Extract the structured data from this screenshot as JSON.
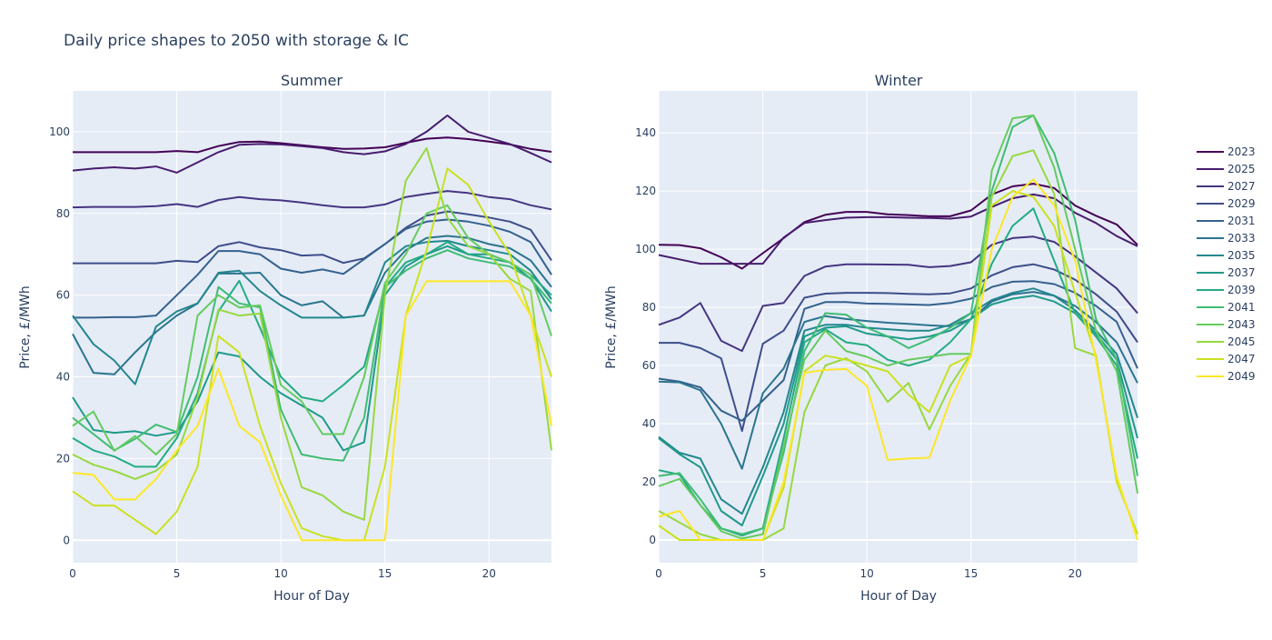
{
  "chart_data": {
    "type": "line",
    "title": "Daily price shapes to 2050 with storage & IC",
    "legend_position": "right",
    "x": [
      0,
      1,
      2,
      3,
      4,
      5,
      6,
      7,
      8,
      9,
      10,
      11,
      12,
      13,
      14,
      15,
      16,
      17,
      18,
      19,
      20,
      21,
      22,
      23
    ],
    "legend": [
      "2023",
      "2025",
      "2027",
      "2029",
      "2031",
      "2033",
      "2035",
      "2037",
      "2039",
      "2041",
      "2043",
      "2045",
      "2047",
      "2049"
    ],
    "colors": [
      "#440154",
      "#481a6c",
      "#472f7d",
      "#414487",
      "#39568c",
      "#31688e",
      "#2a788e",
      "#23888e",
      "#1f988b",
      "#22a884",
      "#35b779",
      "#54c568",
      "#7ad151",
      "#a5db36",
      "#d2e21b",
      "#fde725"
    ],
    "series_colors": [
      "#440154",
      "#481c6e",
      "#453581",
      "#3d4d8a",
      "#34618d",
      "#2b748e",
      "#24878e",
      "#1f998a",
      "#25ab82",
      "#3fbc73",
      "#65cb5e",
      "#97d83f",
      "#cae11f",
      "#fde725"
    ],
    "subplots": [
      {
        "title": "Summer",
        "xlabel": "Hour of Day",
        "ylabel": "Price, £/MWh",
        "xlim": [
          0,
          23
        ],
        "ylim": [
          -5.5,
          110
        ],
        "xticks": [
          0,
          5,
          10,
          15,
          20
        ],
        "yticks": [
          0,
          20,
          40,
          60,
          80,
          100
        ],
        "grid": true,
        "series": [
          {
            "name": "2023",
            "values": [
              95,
              95,
              95,
              95,
              95,
              95.3,
              95,
              96.5,
              97.5,
              97.6,
              97.2,
              96.7,
              96.2,
              95.8,
              95.9,
              96.2,
              97.3,
              98.3,
              98.6,
              98.2,
              97.6,
              96.9,
              95.8,
              95.1
            ]
          },
          {
            "name": "2025",
            "values": [
              90.5,
              91,
              91.3,
              91,
              91.5,
              90,
              92.5,
              95,
              96.8,
              97,
              96.9,
              96.5,
              96,
              95,
              94.5,
              95.2,
              97,
              100,
              104,
              100,
              98.5,
              97,
              94.8,
              92.5
            ]
          },
          {
            "name": "2027",
            "values": [
              81.5,
              81.6,
              81.6,
              81.6,
              81.8,
              82.3,
              81.6,
              83.3,
              84,
              83.5,
              83.2,
              82.7,
              82,
              81.5,
              81.5,
              82.2,
              84,
              84.8,
              85.5,
              85,
              84,
              83.5,
              82,
              81
            ]
          },
          {
            "name": "2029",
            "values": [
              67.8,
              67.8,
              67.8,
              67.8,
              67.8,
              68.4,
              68.1,
              72,
              73,
              71.7,
              71,
              69.7,
              69.9,
              67.9,
              69,
              72.5,
              76.5,
              79.5,
              80.5,
              79.8,
              79,
              78,
              76,
              68.5
            ]
          },
          {
            "name": "2031",
            "values": [
              54.5,
              54.5,
              54.6,
              54.6,
              55,
              60,
              65,
              70.8,
              70.8,
              70,
              66.5,
              65.5,
              66.3,
              65.2,
              68.8,
              72.5,
              76.2,
              78,
              78.5,
              78,
              77,
              75.5,
              73,
              65
            ]
          },
          {
            "name": "2033",
            "values": [
              50.5,
              41,
              40.6,
              46,
              51,
              55,
              58,
              65.3,
              65.3,
              65.5,
              60,
              57.5,
              58.5,
              54.5,
              55,
              65.5,
              71,
              74,
              74.5,
              74,
              72.5,
              71.5,
              68.5,
              62
            ]
          },
          {
            "name": "2035",
            "values": [
              55,
              48,
              44,
              38.2,
              52.3,
              56,
              58,
              65.5,
              66,
              61,
              57.5,
              54.5,
              54.5,
              54.5,
              55,
              68,
              72,
              73,
              73.3,
              72,
              71,
              70,
              66,
              59
            ]
          },
          {
            "name": "2037",
            "values": [
              35,
              27,
              26.3,
              26.7,
              25.6,
              26.5,
              34,
              46,
              45,
              40,
              36,
              33,
              30,
              22,
              24,
              60,
              67,
              70,
              72,
              70,
              70,
              68,
              64,
              56
            ]
          },
          {
            "name": "2039",
            "values": [
              25,
              22,
              20.5,
              18,
              18,
              25,
              36,
              56,
              63.5,
              52,
              40,
              35,
              34,
              38,
              42.5,
              62,
              68,
              70,
              73,
              70,
              69,
              68,
              65,
              60
            ]
          },
          {
            "name": "2041",
            "values": [
              30,
              26,
              22,
              24.8,
              28.3,
              26.5,
              40,
              62,
              58,
              57,
              32,
              21,
              20,
              19.5,
              30,
              62,
              66,
              69,
              71,
              69,
              68,
              67,
              64,
              58
            ]
          },
          {
            "name": "2043",
            "values": [
              28,
              31.5,
              21.9,
              25.5,
              21,
              26,
              55,
              60,
              57,
              57.5,
              38,
              34,
              26,
              26,
              40,
              63,
              70,
              80,
              82,
              74,
              70,
              68,
              65,
              50
            ]
          },
          {
            "name": "2045",
            "values": [
              21,
              18.5,
              17,
              15,
              17,
              21,
              35,
              56.5,
              55,
              55.5,
              30,
              13,
              11,
              7,
              5,
              60,
              88,
              96,
              79,
              72,
              70,
              64,
              61,
              22
            ]
          },
          {
            "name": "2047",
            "values": [
              12,
              8.5,
              8.5,
              5,
              1.5,
              7,
              18,
              50,
              46,
              28,
              14,
              3,
              1,
              0,
              0,
              18,
              55,
              71,
              91,
              87,
              78,
              70,
              55,
              40
            ]
          },
          {
            "name": "2049",
            "values": [
              16.5,
              16,
              10,
              10,
              15,
              22,
              28,
              42,
              28,
              24,
              11,
              0,
              0,
              0,
              0,
              0,
              55,
              63.4,
              63.4,
              63.4,
              63.4,
              63.4,
              55,
              28
            ]
          }
        ]
      },
      {
        "title": "Winter",
        "xlabel": "Hour of Day",
        "ylabel": "Price, £/MWh",
        "xlim": [
          0,
          23
        ],
        "ylim": [
          -7.8,
          154.4
        ],
        "xticks": [
          0,
          5,
          10,
          15,
          20
        ],
        "yticks": [
          0,
          20,
          40,
          60,
          80,
          100,
          120,
          140
        ],
        "grid": true,
        "series": [
          {
            "name": "2023",
            "values": [
              101.5,
              101.4,
              100.3,
              97.2,
              93.3,
              98.6,
              103.8,
              109.3,
              111.8,
              112.8,
              112.8,
              112,
              111.7,
              111.3,
              111.3,
              113.3,
              118.8,
              121.6,
              122.5,
              121,
              115,
              111.5,
              108.5,
              101.5
            ]
          },
          {
            "name": "2025",
            "values": [
              98,
              96.5,
              95,
              95,
              95,
              95,
              104,
              109,
              110,
              110.8,
              111,
              111,
              110.8,
              110.7,
              110.5,
              111.2,
              114.5,
              117.5,
              118.8,
              117.5,
              112.5,
              109,
              104.5,
              101
            ]
          },
          {
            "name": "2027",
            "values": [
              74,
              76.5,
              81.5,
              68.5,
              65,
              80.5,
              81.5,
              90.8,
              94,
              94.8,
              94.8,
              94.7,
              94.6,
              93.8,
              94.2,
              95.5,
              101.5,
              103.8,
              104.3,
              102.5,
              97.5,
              92,
              86.5,
              78
            ]
          },
          {
            "name": "2029",
            "values": [
              67.8,
              67.8,
              66,
              62.5,
              37.5,
              67.5,
              72,
              83.3,
              84.7,
              85,
              85,
              84.9,
              84.6,
              84.5,
              84.8,
              86.5,
              91,
              93.8,
              94.8,
              93,
              89.5,
              84.5,
              78.5,
              68
            ]
          },
          {
            "name": "2031",
            "values": [
              55.5,
              54.5,
              52.5,
              44.5,
              41,
              48,
              55,
              79.5,
              81.8,
              81.8,
              81.3,
              81.2,
              81,
              80.8,
              81.5,
              83,
              87,
              88.8,
              89,
              88,
              85,
              80.5,
              75,
              59
            ]
          },
          {
            "name": "2033",
            "values": [
              54.5,
              54.2,
              51.5,
              40,
              24.5,
              50.5,
              59,
              75,
              77,
              76,
              75.3,
              74.7,
              74.3,
              73.8,
              73.5,
              76,
              82,
              84.5,
              85.3,
              84,
              80.5,
              75,
              68,
              54
            ]
          },
          {
            "name": "2035",
            "values": [
              35.5,
              30,
              28,
              14,
              9,
              25,
              44,
              72,
              74,
              74,
              73,
              72.5,
              72,
              72,
              74,
              78,
              82.5,
              85,
              86.5,
              84,
              79,
              72,
              64,
              42
            ]
          },
          {
            "name": "2037",
            "values": [
              35,
              29.5,
              25,
              10,
              5,
              22,
              40,
              70,
              73,
              73.5,
              71,
              70,
              69,
              70,
              72,
              76,
              81,
              83,
              84,
              82,
              78,
              71,
              62,
              35
            ]
          },
          {
            "name": "2039",
            "values": [
              24,
              22.5,
              12,
              4,
              1.5,
              4,
              35,
              68,
              72.5,
              68,
              67,
              62,
              60,
              62,
              68,
              76,
              95,
              108,
              114,
              96,
              78,
              70,
              60,
              28
            ]
          },
          {
            "name": "2041",
            "values": [
              22,
              23,
              14,
              4,
              2,
              4,
              30,
              65,
              78,
              77.5,
              73,
              70,
              66,
              69,
              73,
              78,
              120,
              142,
              146,
              133,
              110,
              76,
              62,
              22
            ]
          },
          {
            "name": "2043",
            "values": [
              18.5,
              21,
              12,
              3,
              0.5,
              2,
              32,
              62,
              72,
              65,
              63,
              60,
              62,
              63,
              64,
              64,
              127,
              145,
              146,
              128,
              100,
              72,
              58,
              16
            ]
          },
          {
            "name": "2045",
            "values": [
              10,
              6,
              2,
              0,
              0,
              0,
              4,
              44,
              60,
              62.5,
              58,
              47.5,
              54,
              38,
              53,
              64,
              118,
              132,
              134,
              119,
              66,
              63.4,
              20,
              2
            ]
          },
          {
            "name": "2047",
            "values": [
              5,
              0,
              0,
              0,
              0,
              0,
              18,
              58,
              63.4,
              62,
              60,
              58,
              50,
              44,
              60,
              63.4,
              115,
              120,
              118,
              108,
              85,
              63.4,
              20,
              2
            ]
          },
          {
            "name": "2049",
            "values": [
              8,
              10,
              0,
              0,
              0,
              0,
              20,
              57.5,
              58.5,
              58.8,
              53,
              27.5,
              28,
              28.3,
              48,
              63.4,
              100,
              118,
              124,
              115,
              96,
              62,
              22,
              0
            ]
          }
        ]
      }
    ]
  }
}
